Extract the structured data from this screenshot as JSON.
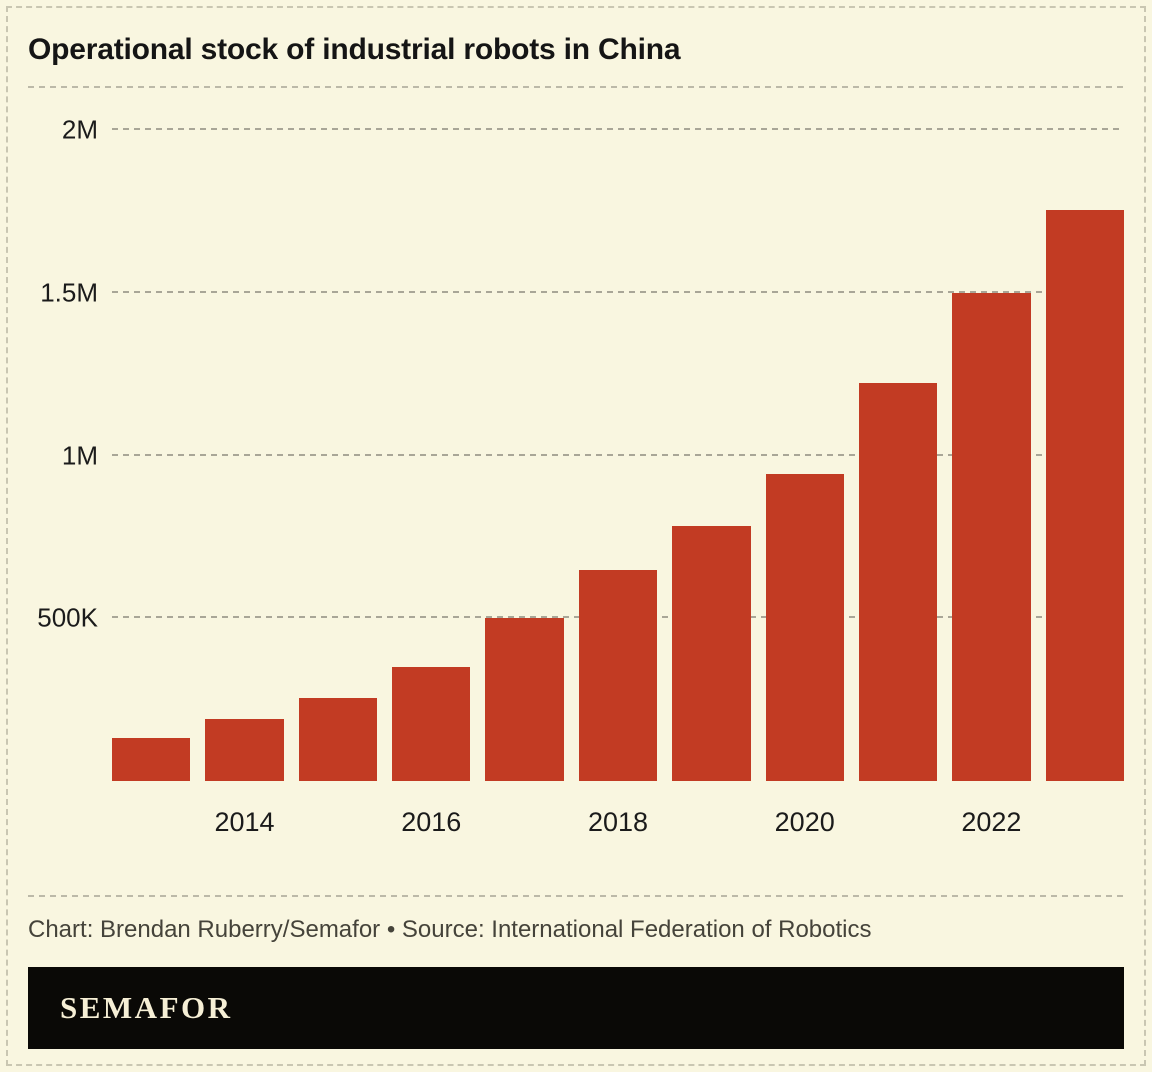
{
  "title": "Operational stock of industrial robots in China",
  "credit": {
    "text": "Chart: Brendan Ruberry/Semafor • Source: International Federation of Robotics"
  },
  "logo": {
    "text": "SEMAFOR"
  },
  "colors": {
    "background": "#f9f6e0",
    "bar": "#c23b23",
    "gridline": "#a9a697",
    "rule": "#bcb9a8",
    "title_text": "#151515",
    "axis_text": "#1b1b1b",
    "credit_text": "#45433a",
    "logo_bg": "#0a0906",
    "logo_text": "#f6efd5"
  },
  "chart_data": {
    "type": "bar",
    "title": "Operational stock of industrial robots in China",
    "categories": [
      "2013",
      "2014",
      "2015",
      "2016",
      "2017",
      "2018",
      "2019",
      "2020",
      "2021",
      "2022",
      "2023"
    ],
    "values": [
      132000,
      189000,
      256000,
      349000,
      501000,
      649000,
      783000,
      943000,
      1224000,
      1500000,
      1755000
    ],
    "xlabel": "",
    "ylabel": "",
    "ylim": [
      0,
      2000000
    ],
    "grid": "dashed-horizontal",
    "legend": "none",
    "yticks": [
      {
        "label": "500K",
        "value": 500000
      },
      {
        "label": "1M",
        "value": 1000000
      },
      {
        "label": "1.5M",
        "value": 1500000
      },
      {
        "label": "2M",
        "value": 2000000
      }
    ],
    "xticks": [
      "2014",
      "2016",
      "2018",
      "2020",
      "2022"
    ]
  }
}
